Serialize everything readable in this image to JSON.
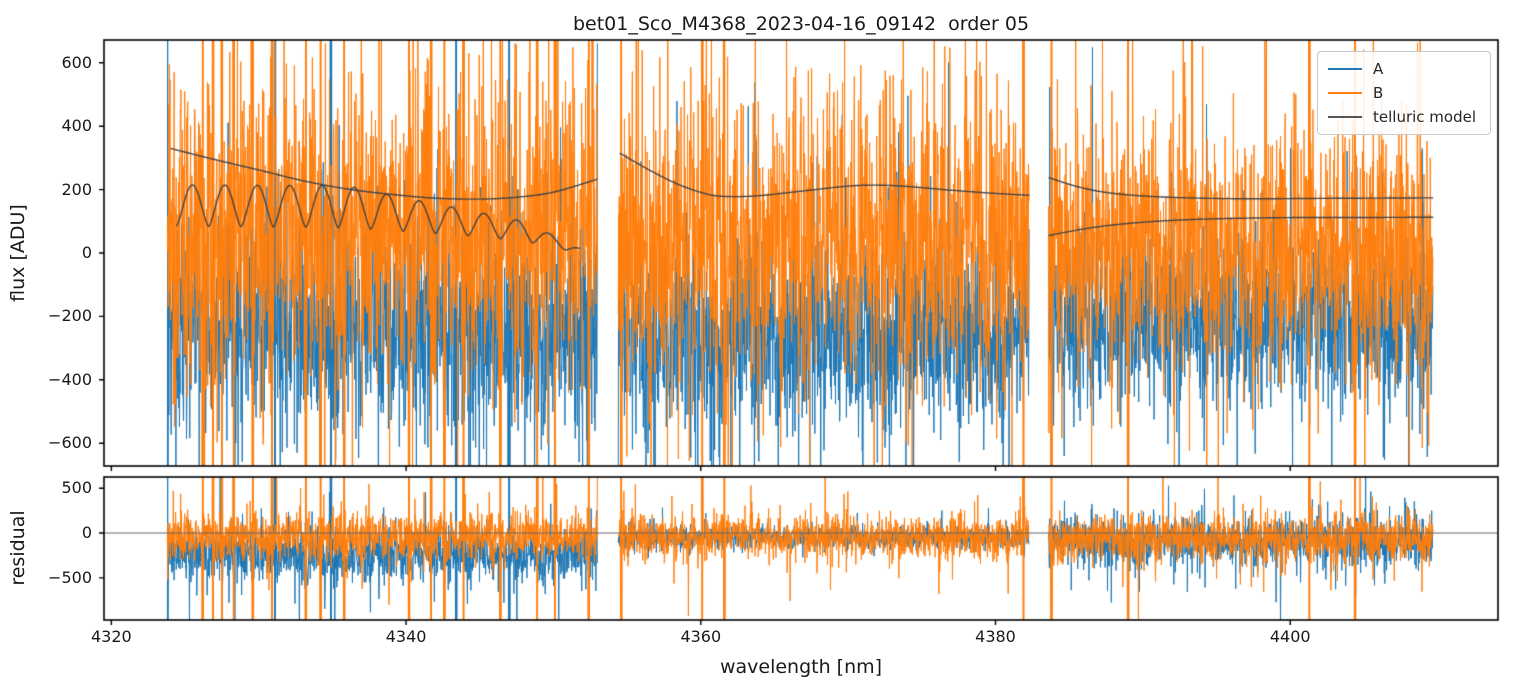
{
  "figure": {
    "title": "bet01_Sco_M4368_2023-04-16_09142  order 05",
    "background": "#ffffff"
  },
  "legend": {
    "entries": [
      {
        "label": "A",
        "color": "#1f77b4"
      },
      {
        "label": "B",
        "color": "#ff7f0e"
      },
      {
        "label": "telluric model",
        "color": "#555555"
      }
    ]
  },
  "chart_data": [
    {
      "type": "line",
      "panel": "flux",
      "title": "bet01_Sco_M4368_2023-04-16_09142  order 05",
      "ylabel": "flux [ADU]",
      "ylim": [
        -672,
        672
      ],
      "yticks": [
        600,
        400,
        200,
        0,
        -200,
        -400,
        -600
      ],
      "ytick_labels": [
        "600",
        "400",
        "200",
        "0",
        "−200",
        "−400",
        "−600"
      ],
      "xlim": [
        4319.5,
        4414.1
      ],
      "xticks": [
        4320,
        4340,
        4360,
        4380,
        4400
      ],
      "xtick_labels": [
        "4320",
        "4340",
        "4360",
        "4380",
        "4400"
      ],
      "show_xtick_labels": false,
      "grid": false,
      "legend_position": "upper right",
      "segments_x": [
        [
          4323.8,
          4353.0
        ],
        [
          4354.4,
          4382.3
        ],
        [
          4383.6,
          4409.7
        ]
      ],
      "series": [
        {
          "name": "A",
          "color": "#1f77b4",
          "noise": [
            {
              "mean": -240,
              "sigma": 165
            },
            {
              "mean": -260,
              "sigma": 155
            },
            {
              "mean": -215,
              "sigma": 140
            }
          ]
        },
        {
          "name": "B",
          "color": "#ff7f0e",
          "noise": [
            {
              "mean": 70,
              "sigma": 230
            },
            {
              "mean": 60,
              "sigma": 225
            },
            {
              "mean": 20,
              "sigma": 185
            }
          ]
        },
        {
          "name": "telluric model",
          "color": "#454545",
          "curves": [
            [
              [
                4324,
                330
              ],
              [
                4327,
                295
              ],
              [
                4330,
                262
              ],
              [
                4333,
                228
              ],
              [
                4336,
                202
              ],
              [
                4339,
                185
              ],
              [
                4342,
                173
              ],
              [
                4345,
                170
              ],
              [
                4347.5,
                176
              ],
              [
                4350,
                192
              ],
              [
                4353,
                233
              ]
            ],
            [
              [
                4354.5,
                315
              ],
              [
                4356.5,
                262
              ],
              [
                4358.5,
                216
              ],
              [
                4360.5,
                185
              ],
              [
                4362,
                178
              ],
              [
                4364,
                181
              ],
              [
                4367,
                196
              ],
              [
                4370,
                211
              ],
              [
                4372,
                214
              ],
              [
                4374,
                210
              ],
              [
                4377,
                198
              ],
              [
                4380,
                188
              ],
              [
                4382.3,
                182
              ]
            ],
            [
              [
                4383.6,
                238
              ],
              [
                4385.5,
                210
              ],
              [
                4387.5,
                191
              ],
              [
                4390,
                180
              ],
              [
                4393,
                174
              ],
              [
                4397,
                171
              ],
              [
                4401,
                172
              ],
              [
                4405,
                173
              ],
              [
                4409.7,
                174
              ]
            ],
            [
              [
                4383.6,
                55
              ],
              [
                4385.5,
                72
              ],
              [
                4387.5,
                86
              ],
              [
                4390,
                97
              ],
              [
                4393,
                105
              ],
              [
                4397,
                110
              ],
              [
                4401,
                112
              ],
              [
                4405,
                112
              ],
              [
                4409.7,
                113
              ]
            ]
          ],
          "fringe": {
            "x_range": [
              4324.4,
              4351.8
            ],
            "period_nm": 2.2,
            "phase_rad": -1.57,
            "shape_exp": 0.75,
            "bottom": [
              [
                4324.4,
                85
              ],
              [
                4336,
                80
              ],
              [
                4340,
                68
              ],
              [
                4344,
                55
              ],
              [
                4348,
                38
              ],
              [
                4351.8,
                0
              ]
            ],
            "amplitude": [
              [
                4324.4,
                130
              ],
              [
                4336,
                132
              ],
              [
                4340,
                105
              ],
              [
                4344,
                82
              ],
              [
                4348,
                62
              ],
              [
                4351.8,
                14
              ]
            ]
          }
        }
      ],
      "spikes": {
        "A": [
          4323.8,
          4331.1,
          4334.9,
          4343.4,
          4347.0
        ],
        "B": [
          4326.2,
          4326.9,
          4327.5,
          4328.3,
          4329.6,
          4330.9,
          4333.2,
          4334.2,
          4335.8,
          4340.2,
          4341.7,
          4342.6,
          4343.9,
          4346.4,
          4348.9,
          4350.1,
          4352.4,
          4354.6,
          4360.1,
          4361.6,
          4381.9,
          4383.8,
          4389.0,
          4401.3,
          4404.4
        ]
      }
    },
    {
      "type": "line",
      "panel": "residual",
      "ylabel": "residual",
      "xlabel": "wavelength [nm]",
      "ylim": [
        -970,
        625
      ],
      "yticks": [
        500,
        0,
        -500
      ],
      "ytick_labels": [
        "500",
        "0",
        "−500"
      ],
      "xlim": [
        4319.5,
        4414.1
      ],
      "xticks": [
        4320,
        4340,
        4360,
        4380,
        4400
      ],
      "xtick_labels": [
        "4320",
        "4340",
        "4360",
        "4380",
        "4400"
      ],
      "show_xtick_labels": true,
      "grid": false,
      "zero_line": true,
      "zero_line_color": "#666666",
      "segments_x": [
        [
          4323.8,
          4353.0
        ],
        [
          4354.4,
          4382.3
        ],
        [
          4383.6,
          4409.7
        ]
      ],
      "series": [
        {
          "name": "A",
          "color": "#1f77b4",
          "noise": [
            {
              "mean": -240,
              "sigma": 155
            },
            {
              "mean": -50,
              "sigma": 60
            },
            {
              "mean": -90,
              "sigma": 140
            }
          ]
        },
        {
          "name": "B",
          "color": "#ff7f0e",
          "noise": [
            {
              "mean": -40,
              "sigma": 130
            },
            {
              "mean": -40,
              "sigma": 120
            },
            {
              "mean": -60,
              "sigma": 125
            }
          ]
        }
      ],
      "spikes": {
        "A": [
          4323.8,
          4331.1,
          4334.9,
          4343.4,
          4347.0
        ],
        "B": [
          4326.2,
          4326.9,
          4327.5,
          4328.3,
          4329.6,
          4330.9,
          4333.2,
          4334.2,
          4335.8,
          4340.2,
          4341.7,
          4342.6,
          4343.9,
          4346.4,
          4348.9,
          4350.1,
          4352.4,
          4354.6,
          4360.1,
          4361.6,
          4381.9,
          4383.8,
          4389.0,
          4401.3,
          4404.4
        ]
      }
    }
  ],
  "render_hints": {
    "seed": 12345,
    "sample_step_nm": 0.02,
    "tail_prob": 0.07,
    "tail_mult": 2.6,
    "spike_halfwidth_nm": 0.05,
    "spike_value": 1500
  }
}
